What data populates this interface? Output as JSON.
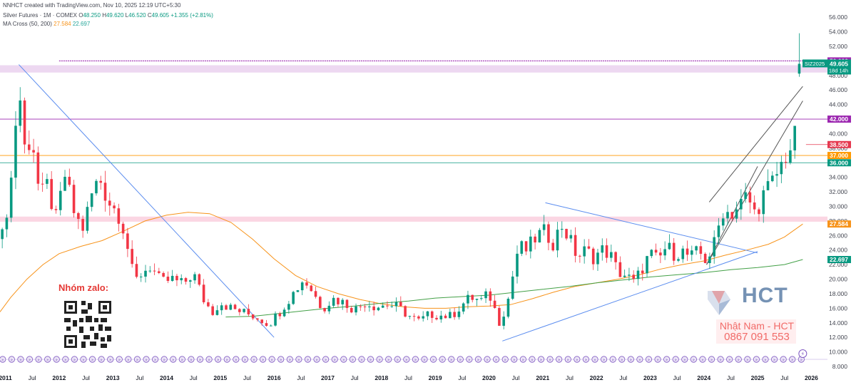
{
  "header": {
    "credit": "NNHCT created with TradingView.com, Nov 10, 2025 12:19 UTC+5:30",
    "symbol": "Silver Futures · 1M · COMEX",
    "open_label": "O",
    "open": "48.250",
    "high_label": "H",
    "high": "49.620",
    "low_label": "L",
    "low": "46.520",
    "close_label": "C",
    "close": "49.605",
    "change": "+1.355 (+2.81%)",
    "ma_label": "MA Cross (50, 200)",
    "ma50": "27.584",
    "ma200": "22.697"
  },
  "promo": {
    "label": "Nhóm zalo:"
  },
  "contact": {
    "name": "Nhật Nam - HCT",
    "phone": "0867 091 553"
  },
  "logo": {
    "text": "HCT"
  },
  "chart_data": {
    "type": "candlestick",
    "symbol": "SIZ2025",
    "price_tag": "49.605",
    "countdown": "18d 14h",
    "ylim": [
      8,
      57
    ],
    "y_ticks": [
      8,
      10,
      12,
      14,
      16,
      18,
      20,
      22,
      24,
      26,
      28,
      30,
      32,
      34,
      36,
      38,
      40,
      42,
      44,
      46,
      48,
      50,
      52,
      54,
      56
    ],
    "x_ticks": [
      {
        "label": "2011",
        "t": 2011.0
      },
      {
        "label": "Jul",
        "t": 2011.5
      },
      {
        "label": "2012",
        "t": 2012.0
      },
      {
        "label": "Jul",
        "t": 2012.5
      },
      {
        "label": "2013",
        "t": 2013.0
      },
      {
        "label": "Jul",
        "t": 2013.5
      },
      {
        "label": "2014",
        "t": 2014.0
      },
      {
        "label": "Jul",
        "t": 2014.5
      },
      {
        "label": "2015",
        "t": 2015.0
      },
      {
        "label": "Jul",
        "t": 2015.5
      },
      {
        "label": "2016",
        "t": 2016.0
      },
      {
        "label": "Jul",
        "t": 2016.5
      },
      {
        "label": "2017",
        "t": 2017.0
      },
      {
        "label": "Jul",
        "t": 2017.5
      },
      {
        "label": "2018",
        "t": 2018.0
      },
      {
        "label": "Jul",
        "t": 2018.5
      },
      {
        "label": "2019",
        "t": 2019.0
      },
      {
        "label": "Jul",
        "t": 2019.5
      },
      {
        "label": "2020",
        "t": 2020.0
      },
      {
        "label": "Jul",
        "t": 2020.5
      },
      {
        "label": "2021",
        "t": 2021.0
      },
      {
        "label": "Jul",
        "t": 2021.5
      },
      {
        "label": "2022",
        "t": 2022.0
      },
      {
        "label": "Jul",
        "t": 2022.5
      },
      {
        "label": "2023",
        "t": 2023.0
      },
      {
        "label": "Jul",
        "t": 2023.5
      },
      {
        "label": "2024",
        "t": 2024.0
      },
      {
        "label": "Jul",
        "t": 2024.5
      },
      {
        "label": "2025",
        "t": 2025.0
      },
      {
        "label": "Jul",
        "t": 2025.5
      },
      {
        "label": "2026",
        "t": 2026.0
      }
    ],
    "close_path": [
      [
        2010.9,
        24.0
      ],
      [
        2011.0,
        28.5
      ],
      [
        2011.1,
        33.0
      ],
      [
        2011.25,
        47.0
      ],
      [
        2011.35,
        38.0
      ],
      [
        2011.5,
        39.5
      ],
      [
        2011.65,
        30.5
      ],
      [
        2011.75,
        33.5
      ],
      [
        2011.95,
        28.0
      ],
      [
        2012.1,
        34.5
      ],
      [
        2012.3,
        28.5
      ],
      [
        2012.45,
        27.0
      ],
      [
        2012.6,
        31.5
      ],
      [
        2012.75,
        34.0
      ],
      [
        2012.9,
        31.0
      ],
      [
        2013.0,
        30.0
      ],
      [
        2013.15,
        28.5
      ],
      [
        2013.3,
        23.5
      ],
      [
        2013.4,
        19.5
      ],
      [
        2013.55,
        21.0
      ],
      [
        2013.7,
        21.8
      ],
      [
        2013.9,
        19.5
      ],
      [
        2014.1,
        20.0
      ],
      [
        2014.3,
        19.3
      ],
      [
        2014.5,
        20.8
      ],
      [
        2014.7,
        17.0
      ],
      [
        2014.85,
        15.5
      ],
      [
        2015.0,
        16.8
      ],
      [
        2015.2,
        16.0
      ],
      [
        2015.4,
        15.5
      ],
      [
        2015.6,
        15.0
      ],
      [
        2015.75,
        14.5
      ],
      [
        2015.9,
        13.8
      ],
      [
        2016.1,
        15.5
      ],
      [
        2016.3,
        17.5
      ],
      [
        2016.55,
        20.0
      ],
      [
        2016.7,
        18.5
      ],
      [
        2016.9,
        16.0
      ],
      [
        2017.1,
        17.3
      ],
      [
        2017.3,
        16.8
      ],
      [
        2017.5,
        15.8
      ],
      [
        2017.7,
        16.8
      ],
      [
        2017.9,
        16.2
      ],
      [
        2018.1,
        16.5
      ],
      [
        2018.3,
        16.2
      ],
      [
        2018.5,
        15.0
      ],
      [
        2018.7,
        14.2
      ],
      [
        2018.9,
        15.2
      ],
      [
        2019.1,
        15.0
      ],
      [
        2019.3,
        14.9
      ],
      [
        2019.5,
        16.5
      ],
      [
        2019.65,
        17.5
      ],
      [
        2019.85,
        17.0
      ],
      [
        2020.0,
        18.0
      ],
      [
        2020.2,
        14.0
      ],
      [
        2020.35,
        17.0
      ],
      [
        2020.55,
        24.5
      ],
      [
        2020.7,
        24.0
      ],
      [
        2020.9,
        26.0
      ],
      [
        2021.05,
        26.5
      ],
      [
        2021.2,
        25.0
      ],
      [
        2021.35,
        27.5
      ],
      [
        2021.5,
        25.5
      ],
      [
        2021.65,
        23.0
      ],
      [
        2021.8,
        24.0
      ],
      [
        2021.95,
        23.0
      ],
      [
        2022.1,
        24.0
      ],
      [
        2022.25,
        23.5
      ],
      [
        2022.4,
        21.0
      ],
      [
        2022.55,
        20.5
      ],
      [
        2022.7,
        19.5
      ],
      [
        2022.85,
        21.5
      ],
      [
        2023.0,
        23.5
      ],
      [
        2023.15,
        22.5
      ],
      [
        2023.3,
        24.5
      ],
      [
        2023.45,
        23.5
      ],
      [
        2023.6,
        23.8
      ],
      [
        2023.75,
        23.0
      ],
      [
        2023.9,
        23.8
      ],
      [
        2024.05,
        22.5
      ],
      [
        2024.2,
        25.0
      ],
      [
        2024.35,
        29.5
      ],
      [
        2024.5,
        29.0
      ],
      [
        2024.65,
        30.0
      ],
      [
        2024.8,
        31.5
      ],
      [
        2024.95,
        29.0
      ],
      [
        2025.1,
        31.5
      ],
      [
        2025.25,
        33.0
      ],
      [
        2025.4,
        35.0
      ],
      [
        2025.55,
        37.5
      ],
      [
        2025.65,
        38.5
      ],
      [
        2025.72,
        40.0
      ],
      [
        2025.78,
        47.0
      ],
      [
        2025.84,
        49.605
      ]
    ],
    "ma50": [
      [
        2010.9,
        15.5
      ],
      [
        2011.1,
        17.5
      ],
      [
        2011.4,
        20.0
      ],
      [
        2011.7,
        22.0
      ],
      [
        2012.0,
        23.5
      ],
      [
        2012.4,
        24.5
      ],
      [
        2012.8,
        25.3
      ],
      [
        2013.2,
        26.6
      ],
      [
        2013.6,
        28.0
      ],
      [
        2014.0,
        28.8
      ],
      [
        2014.4,
        29.2
      ],
      [
        2014.8,
        29.0
      ],
      [
        2015.2,
        27.8
      ],
      [
        2015.6,
        25.5
      ],
      [
        2016.0,
        22.8
      ],
      [
        2016.4,
        20.5
      ],
      [
        2016.8,
        19.0
      ],
      [
        2017.2,
        18.0
      ],
      [
        2017.6,
        17.2
      ],
      [
        2018.0,
        16.6
      ],
      [
        2018.4,
        16.2
      ],
      [
        2018.8,
        16.0
      ],
      [
        2019.2,
        16.0
      ],
      [
        2019.6,
        16.2
      ],
      [
        2020.0,
        16.3
      ],
      [
        2020.4,
        16.5
      ],
      [
        2020.8,
        17.3
      ],
      [
        2021.2,
        18.2
      ],
      [
        2021.6,
        19.0
      ],
      [
        2022.0,
        19.5
      ],
      [
        2022.4,
        20.0
      ],
      [
        2022.8,
        20.6
      ],
      [
        2023.2,
        21.4
      ],
      [
        2023.6,
        22.0
      ],
      [
        2024.0,
        22.5
      ],
      [
        2024.4,
        23.3
      ],
      [
        2024.8,
        24.0
      ],
      [
        2025.2,
        24.8
      ],
      [
        2025.5,
        25.8
      ],
      [
        2025.84,
        27.584
      ]
    ],
    "ma200": [
      [
        2015.1,
        14.8
      ],
      [
        2015.6,
        14.9
      ],
      [
        2016.0,
        15.2
      ],
      [
        2016.5,
        15.6
      ],
      [
        2017.0,
        16.0
      ],
      [
        2017.5,
        16.3
      ],
      [
        2018.0,
        16.7
      ],
      [
        2018.5,
        17.0
      ],
      [
        2019.0,
        17.4
      ],
      [
        2019.5,
        17.6
      ],
      [
        2020.0,
        17.8
      ],
      [
        2020.5,
        18.2
      ],
      [
        2021.0,
        18.6
      ],
      [
        2021.5,
        19.0
      ],
      [
        2022.0,
        19.5
      ],
      [
        2022.5,
        19.9
      ],
      [
        2023.0,
        20.3
      ],
      [
        2023.5,
        20.6
      ],
      [
        2024.0,
        20.9
      ],
      [
        2024.5,
        21.3
      ],
      [
        2025.0,
        21.6
      ],
      [
        2025.5,
        22.0
      ],
      [
        2025.84,
        22.697
      ]
    ],
    "trendlines": [
      {
        "points": [
          [
            2011.25,
            49.5
          ],
          [
            2016.0,
            12.0
          ]
        ],
        "color": "#5b8def"
      },
      {
        "points": [
          [
            2020.25,
            11.5
          ],
          [
            2025.0,
            23.8
          ]
        ],
        "color": "#5b8def"
      },
      {
        "points": [
          [
            2021.05,
            30.5
          ],
          [
            2025.0,
            23.6
          ]
        ],
        "color": "#5b8def"
      },
      {
        "points": [
          [
            2024.05,
            22.0
          ],
          [
            2025.84,
            44.5
          ]
        ],
        "color": "#555555"
      },
      {
        "points": [
          [
            2024.1,
            30.6
          ],
          [
            2025.84,
            46.5
          ]
        ],
        "color": "#555555"
      },
      {
        "points": [
          [
            2024.05,
            22.0
          ],
          [
            2025.0,
            35.5
          ]
        ],
        "color": "#555555"
      }
    ],
    "levels": [
      {
        "value": 50.0,
        "label": "50.000",
        "color": "#9c27b0",
        "start": 2012.0
      },
      {
        "value": 42.0,
        "label": "42.000",
        "color": "#9c27b0",
        "start": 2010.9
      },
      {
        "value": 38.5,
        "label": "38.500",
        "color": "#e53950",
        "start": 2025.9
      },
      {
        "value": 37.0,
        "label": "37.000",
        "color": "#ff9800",
        "start": 2010.9
      },
      {
        "value": 36.0,
        "label": "36.000",
        "color": "#089981",
        "start": 2010.9
      }
    ],
    "zones": [
      {
        "from": 48.4,
        "to": 49.4,
        "color": "#e1bee7",
        "start": 2010.9
      },
      {
        "from": 27.9,
        "to": 28.6,
        "color": "#f8bbd0",
        "start": 2010.9
      }
    ],
    "axis_tags": [
      {
        "value": 27.584,
        "label": "27.584",
        "color": "#f7931a"
      },
      {
        "value": 22.697,
        "label": "22.697",
        "color": "#089981"
      }
    ]
  }
}
